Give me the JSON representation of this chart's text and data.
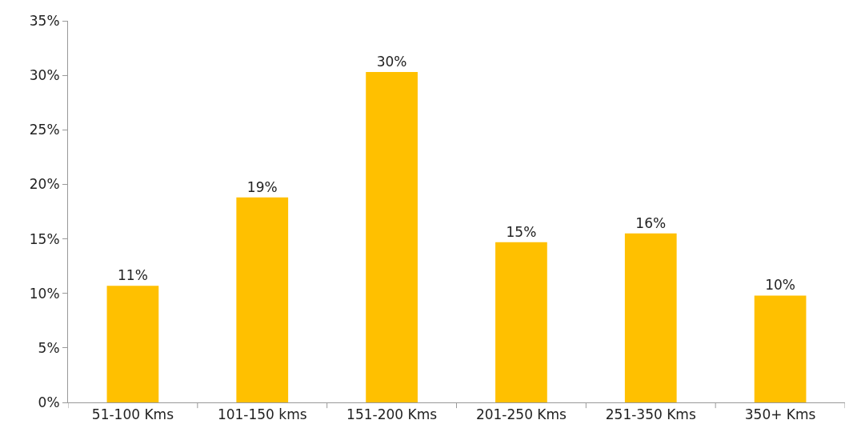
{
  "chart_data": {
    "type": "bar",
    "categories": [
      "51-100 Kms",
      "101-150 kms",
      "151-200 Kms",
      "201-250 Kms",
      "251-350 Kms",
      "350+ Kms"
    ],
    "values": [
      10.7,
      18.8,
      30.3,
      14.7,
      15.5,
      9.8
    ],
    "color": "#ffc000",
    "value_labels": [
      "11%",
      "19%",
      "30%",
      "15%",
      "16%",
      "10%"
    ],
    "ylim": [
      0,
      35
    ],
    "yticks": [
      {
        "value": 0,
        "label": "0%"
      },
      {
        "value": 5,
        "label": "5%"
      },
      {
        "value": 10,
        "label": "10%"
      },
      {
        "value": 15,
        "label": "15%"
      },
      {
        "value": 20,
        "label": "20%"
      },
      {
        "value": 25,
        "label": "25%"
      },
      {
        "value": 30,
        "label": "30%"
      },
      {
        "value": 35,
        "label": "35%"
      }
    ],
    "legend": false
  }
}
